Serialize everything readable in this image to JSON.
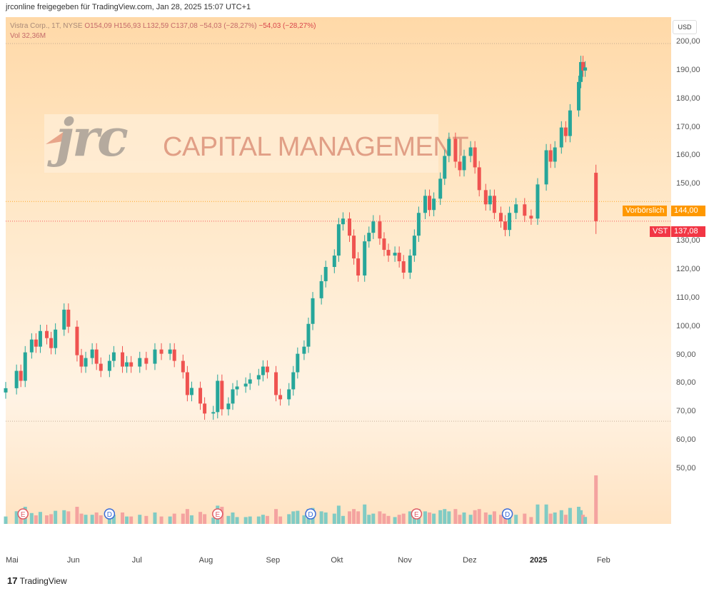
{
  "publisher_line": "jrconline freigegeben für TradingView.com, Jan 28, 2025 15:07 UTC+1",
  "legend": {
    "symbol": "Vistra Corp., 1T, NYSE",
    "ohlc": "O154,09 H156,93 L132,59 C137,08 −54,03 (−28,27%)",
    "change": "−54,03 (−28,27%)",
    "vol": "Vol  32,36M"
  },
  "currency_button": "USD",
  "logo": {
    "mark": "jrc",
    "text": "CAPITAL MANAGEMENT"
  },
  "badges": {
    "premarket_label": "Vorbörslich",
    "premarket_price": "144,00",
    "symbol": "VST",
    "last_price": "137,08"
  },
  "footer": "TradingView",
  "colors": {
    "up": "#26a69a",
    "down": "#ef5350",
    "vol_up": "#80cbc4",
    "vol_down": "#f4a3a0",
    "premarket": "#ff9800",
    "last": "#f23645"
  },
  "events": [
    {
      "type": "E",
      "date": "2024-05-09"
    },
    {
      "type": "D",
      "date": "2024-06-18"
    },
    {
      "type": "E",
      "date": "2024-08-07"
    },
    {
      "type": "D",
      "date": "2024-09-19"
    },
    {
      "type": "E",
      "date": "2024-11-07"
    },
    {
      "type": "D",
      "date": "2024-12-19"
    }
  ],
  "chart_data": {
    "type": "candlestick",
    "x_axis": {
      "labels": [
        "Mai",
        "Jun",
        "Jul",
        "Aug",
        "Sep",
        "Okt",
        "Nov",
        "Dez",
        "2025",
        "Feb"
      ],
      "start": "2024-05-01",
      "end": "2025-02-07"
    },
    "y_axis": {
      "ticks": [
        "200,00",
        "190,00",
        "180,00",
        "170,00",
        "160,00",
        "150,00",
        "140,00",
        "130,00",
        "120,00",
        "110,00",
        "100,00",
        "90,00",
        "80,00",
        "70,00",
        "60,00",
        "50,00"
      ],
      "min": 40,
      "max": 201
    },
    "price_lines": {
      "high_marker": 199.5,
      "low_marker": 66.8,
      "premarket": 144.0,
      "last": 137.08
    },
    "series": [
      {
        "d": "2024-05-01",
        "c": 78.4
      },
      {
        "d": "2024-05-06",
        "c": 84.5
      },
      {
        "d": "2024-05-08",
        "c": 81.0
      },
      {
        "d": "2024-05-10",
        "c": 91.0
      },
      {
        "d": "2024-05-13",
        "c": 95.5
      },
      {
        "d": "2024-05-15",
        "c": 93.0
      },
      {
        "d": "2024-05-17",
        "c": 98.5
      },
      {
        "d": "2024-05-20",
        "c": 96.0
      },
      {
        "d": "2024-05-22",
        "c": 92.5
      },
      {
        "d": "2024-05-24",
        "c": 99.0
      },
      {
        "d": "2024-05-28",
        "c": 106.0
      },
      {
        "d": "2024-05-30",
        "c": 100.0
      },
      {
        "d": "2024-06-03",
        "c": 90.0
      },
      {
        "d": "2024-06-05",
        "c": 86.0
      },
      {
        "d": "2024-06-07",
        "c": 89.0
      },
      {
        "d": "2024-06-10",
        "c": 92.0
      },
      {
        "d": "2024-06-12",
        "c": 87.0
      },
      {
        "d": "2024-06-14",
        "c": 84.5
      },
      {
        "d": "2024-06-18",
        "c": 88.0
      },
      {
        "d": "2024-06-20",
        "c": 91.0
      },
      {
        "d": "2024-06-24",
        "c": 86.0
      },
      {
        "d": "2024-06-26",
        "c": 87.5
      },
      {
        "d": "2024-06-28",
        "c": 86.0
      },
      {
        "d": "2024-07-02",
        "c": 89.0
      },
      {
        "d": "2024-07-05",
        "c": 87.0
      },
      {
        "d": "2024-07-09",
        "c": 92.0
      },
      {
        "d": "2024-07-12",
        "c": 90.5
      },
      {
        "d": "2024-07-16",
        "c": 92.0
      },
      {
        "d": "2024-07-18",
        "c": 88.0
      },
      {
        "d": "2024-07-22",
        "c": 84.0
      },
      {
        "d": "2024-07-24",
        "c": 76.0
      },
      {
        "d": "2024-07-26",
        "c": 78.5
      },
      {
        "d": "2024-07-30",
        "c": 73.0
      },
      {
        "d": "2024-08-01",
        "c": 69.5
      },
      {
        "d": "2024-08-05",
        "c": 70.0
      },
      {
        "d": "2024-08-07",
        "c": 81.0
      },
      {
        "d": "2024-08-09",
        "c": 71.0
      },
      {
        "d": "2024-08-12",
        "c": 73.0
      },
      {
        "d": "2024-08-14",
        "c": 78.0
      },
      {
        "d": "2024-08-16",
        "c": 79.0
      },
      {
        "d": "2024-08-20",
        "c": 80.0
      },
      {
        "d": "2024-08-22",
        "c": 81.5
      },
      {
        "d": "2024-08-26",
        "c": 83.0
      },
      {
        "d": "2024-08-28",
        "c": 86.0
      },
      {
        "d": "2024-08-30",
        "c": 84.0
      },
      {
        "d": "2024-09-03",
        "c": 76.0
      },
      {
        "d": "2024-09-05",
        "c": 74.5
      },
      {
        "d": "2024-09-09",
        "c": 78.0
      },
      {
        "d": "2024-09-11",
        "c": 84.0
      },
      {
        "d": "2024-09-13",
        "c": 90.5
      },
      {
        "d": "2024-09-16",
        "c": 93.0
      },
      {
        "d": "2024-09-18",
        "c": 101.0
      },
      {
        "d": "2024-09-20",
        "c": 110.0
      },
      {
        "d": "2024-09-24",
        "c": 116.0
      },
      {
        "d": "2024-09-26",
        "c": 121.0
      },
      {
        "d": "2024-09-30",
        "c": 125.0
      },
      {
        "d": "2024-10-02",
        "c": 136.0
      },
      {
        "d": "2024-10-04",
        "c": 138.0
      },
      {
        "d": "2024-10-07",
        "c": 132.0
      },
      {
        "d": "2024-10-09",
        "c": 124.0
      },
      {
        "d": "2024-10-11",
        "c": 118.0
      },
      {
        "d": "2024-10-14",
        "c": 130.0
      },
      {
        "d": "2024-10-16",
        "c": 133.0
      },
      {
        "d": "2024-10-18",
        "c": 137.0
      },
      {
        "d": "2024-10-21",
        "c": 131.0
      },
      {
        "d": "2024-10-23",
        "c": 127.0
      },
      {
        "d": "2024-10-25",
        "c": 125.0
      },
      {
        "d": "2024-10-28",
        "c": 126.0
      },
      {
        "d": "2024-10-30",
        "c": 123.0
      },
      {
        "d": "2024-11-01",
        "c": 119.0
      },
      {
        "d": "2024-11-04",
        "c": 125.0
      },
      {
        "d": "2024-11-06",
        "c": 132.0
      },
      {
        "d": "2024-11-08",
        "c": 140.0
      },
      {
        "d": "2024-11-11",
        "c": 146.0
      },
      {
        "d": "2024-11-13",
        "c": 141.0
      },
      {
        "d": "2024-11-15",
        "c": 145.0
      },
      {
        "d": "2024-11-18",
        "c": 152.0
      },
      {
        "d": "2024-11-20",
        "c": 160.0
      },
      {
        "d": "2024-11-22",
        "c": 166.0
      },
      {
        "d": "2024-11-25",
        "c": 158.0
      },
      {
        "d": "2024-11-27",
        "c": 155.0
      },
      {
        "d": "2024-11-29",
        "c": 160.0
      },
      {
        "d": "2024-12-02",
        "c": 163.0
      },
      {
        "d": "2024-12-04",
        "c": 156.0
      },
      {
        "d": "2024-12-06",
        "c": 148.0
      },
      {
        "d": "2024-12-09",
        "c": 143.0
      },
      {
        "d": "2024-12-11",
        "c": 146.0
      },
      {
        "d": "2024-12-13",
        "c": 140.0
      },
      {
        "d": "2024-12-16",
        "c": 137.0
      },
      {
        "d": "2024-12-18",
        "c": 134.0
      },
      {
        "d": "2024-12-20",
        "c": 140.0
      },
      {
        "d": "2024-12-23",
        "c": 143.0
      },
      {
        "d": "2024-12-27",
        "c": 139.0
      },
      {
        "d": "2024-12-30",
        "c": 138.0
      },
      {
        "d": "2025-01-02",
        "c": 150.0
      },
      {
        "d": "2025-01-06",
        "c": 162.0
      },
      {
        "d": "2025-01-08",
        "c": 158.0
      },
      {
        "d": "2025-01-10",
        "c": 163.0
      },
      {
        "d": "2025-01-13",
        "c": 170.0
      },
      {
        "d": "2025-01-15",
        "c": 167.0
      },
      {
        "d": "2025-01-17",
        "c": 176.0
      },
      {
        "d": "2025-01-21",
        "c": 186.0
      },
      {
        "d": "2025-01-22",
        "c": 193.0
      },
      {
        "d": "2025-01-23",
        "c": 190.0
      },
      {
        "d": "2025-01-24",
        "c": 191.1
      }
    ]
  }
}
